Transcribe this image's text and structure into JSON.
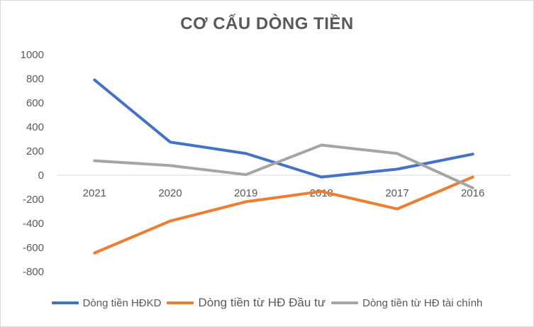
{
  "chart_data": {
    "type": "line",
    "title": "CƠ CẤU DÒNG TIỀN",
    "categories": [
      "2021",
      "2020",
      "2019",
      "2018",
      "2017",
      "2016"
    ],
    "ylim": [
      -800,
      1000
    ],
    "yticks": [
      1000,
      800,
      600,
      400,
      200,
      0,
      -200,
      -400,
      -600,
      -800
    ],
    "grid": false,
    "legend_position": "bottom",
    "series": [
      {
        "name": "Dòng tiền HĐKD",
        "color": "#4472C4",
        "values": [
          790,
          275,
          180,
          -15,
          50,
          175
        ]
      },
      {
        "name": "Dòng tiền từ HĐ Đầu tư",
        "color": "#ED7D31",
        "values": [
          -645,
          -380,
          -220,
          -135,
          -280,
          -15
        ]
      },
      {
        "name": "Dòng tiền từ HĐ tài chính",
        "color": "#A5A5A5",
        "values": [
          120,
          80,
          5,
          250,
          180,
          -105
        ]
      }
    ]
  }
}
